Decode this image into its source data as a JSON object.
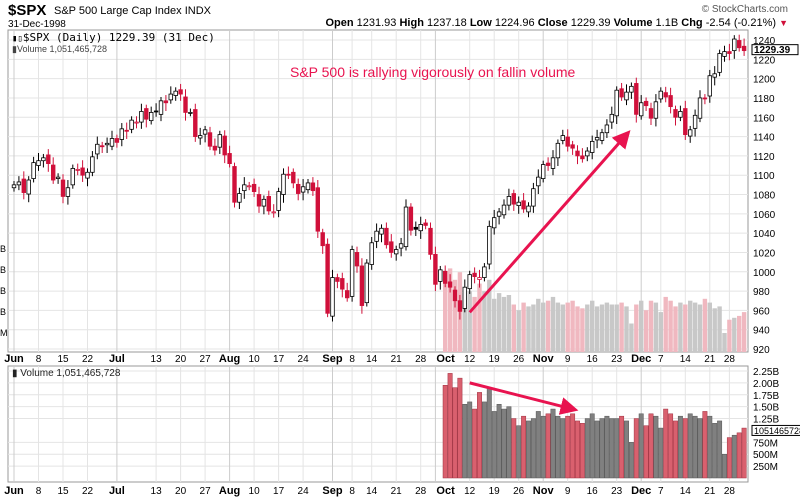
{
  "header": {
    "symbol": "$SPX",
    "name": "S&P 500 Large Cap Index",
    "exchange": "INDX",
    "date": "31-Dec-1998",
    "copyright": "© StockCharts.com",
    "open_label": "Open",
    "open": "1231.93",
    "high_label": "High",
    "high": "1237.18",
    "low_label": "Low",
    "low": "1224.96",
    "close_label": "Close",
    "close": "1229.39",
    "volume_label": "Volume",
    "volume": "1.1B",
    "chg_label": "Chg",
    "chg": "-2.54 (-0.21%)"
  },
  "legend": {
    "price": "$SPX (Daily) 1229.39 (31 Dec)",
    "volume": "Volume 1,051,465,728",
    "volume_panel": "Volume 1,051,465,728"
  },
  "colors": {
    "up": "#000000",
    "down": "#d0103a",
    "vol_up": "#808080",
    "vol_down": "#d9606e",
    "annotation": "#e8134f"
  },
  "chart_data": {
    "type": "candlestick",
    "title": "$SPX (Daily)",
    "annotation": "S&P 500 is rallying vigorously on fallin volume",
    "ylim": [
      920,
      1240
    ],
    "yticks": [
      920,
      940,
      960,
      980,
      1000,
      1020,
      1040,
      1060,
      1080,
      1100,
      1120,
      1140,
      1160,
      1180,
      1200,
      1220,
      1240
    ],
    "last_price_label": "1229.39",
    "overlay_volume_ticks": [
      "B",
      "B",
      "B",
      "B",
      "M"
    ],
    "xticks": [
      {
        "i": 0,
        "label": "Jun",
        "major": true
      },
      {
        "i": 5,
        "label": "8"
      },
      {
        "i": 10,
        "label": "15"
      },
      {
        "i": 15,
        "label": "22"
      },
      {
        "i": 21,
        "label": "Jul",
        "major": true
      },
      {
        "i": 29,
        "label": "13"
      },
      {
        "i": 34,
        "label": "20"
      },
      {
        "i": 39,
        "label": "27"
      },
      {
        "i": 44,
        "label": "Aug",
        "major": true
      },
      {
        "i": 49,
        "label": "10"
      },
      {
        "i": 54,
        "label": "17"
      },
      {
        "i": 59,
        "label": "24"
      },
      {
        "i": 65,
        "label": "Sep",
        "major": true
      },
      {
        "i": 69,
        "label": "8"
      },
      {
        "i": 73,
        "label": "14"
      },
      {
        "i": 78,
        "label": "21"
      },
      {
        "i": 83,
        "label": "28"
      },
      {
        "i": 86,
        "label": "Oct",
        "major": true
      },
      {
        "i": 93,
        "label": "12"
      },
      {
        "i": 98,
        "label": "19"
      },
      {
        "i": 103,
        "label": "26"
      },
      {
        "i": 108,
        "label": "Nov",
        "major": true
      },
      {
        "i": 113,
        "label": "9"
      },
      {
        "i": 118,
        "label": "16"
      },
      {
        "i": 123,
        "label": "23"
      },
      {
        "i": 128,
        "label": "Dec",
        "major": true
      },
      {
        "i": 132,
        "label": "7"
      },
      {
        "i": 137,
        "label": "14"
      },
      {
        "i": 142,
        "label": "21"
      },
      {
        "i": 146,
        "label": "28"
      }
    ],
    "closes": [
      1090,
      1093,
      1082,
      1095,
      1113,
      1115,
      1118,
      1112,
      1095,
      1098,
      1078,
      1087,
      1107,
      1106,
      1100,
      1103,
      1119,
      1132,
      1130,
      1133,
      1138,
      1134,
      1148,
      1146,
      1157,
      1155,
      1166,
      1158,
      1165,
      1166,
      1177,
      1175,
      1184,
      1187,
      1184,
      1165,
      1165,
      1140,
      1141,
      1147,
      1130,
      1126,
      1142,
      1121,
      1112,
      1072,
      1081,
      1090,
      1089,
      1083,
      1068,
      1075,
      1063,
      1062,
      1083,
      1101,
      1100,
      1092,
      1081,
      1088,
      1092,
      1084,
      1042,
      1027,
      957,
      994,
      990,
      982,
      973,
      1023,
      1006,
      965,
      1009,
      1030,
      1042,
      1045,
      1028,
      1020,
      1023,
      1029,
      1067,
      1043,
      1044,
      1049,
      1048,
      1018,
      987,
      1002,
      988,
      984,
      970,
      959,
      984,
      997,
      995,
      994,
      1005,
      1047,
      1056,
      1062,
      1069,
      1078,
      1070,
      1072,
      1065,
      1068,
      1086,
      1098,
      1111,
      1110,
      1118,
      1133,
      1141,
      1130,
      1128,
      1120,
      1117,
      1125,
      1135,
      1139,
      1144,
      1152,
      1163,
      1188,
      1181,
      1186,
      1192,
      1163,
      1175,
      1172,
      1159,
      1176,
      1187,
      1181,
      1171,
      1160,
      1166,
      1142,
      1147,
      1162,
      1180,
      1179,
      1203,
      1205,
      1226,
      1228,
      1226,
      1241,
      1232,
      1229
    ],
    "volume_start_index": 88,
    "volume_billions": [
      1.95,
      2.2,
      1.9,
      2.1,
      1.55,
      1.6,
      1.45,
      1.8,
      1.6,
      1.9,
      1.4,
      1.55,
      1.45,
      1.5,
      1.25,
      1.1,
      1.3,
      1.2,
      1.25,
      1.4,
      1.3,
      1.35,
      1.45,
      1.3,
      1.25,
      1.3,
      1.35,
      1.2,
      1.15,
      1.25,
      1.35,
      1.2,
      1.25,
      1.3,
      1.25,
      1.25,
      1.3,
      1.2,
      0.75,
      1.25,
      1.35,
      1.1,
      1.35,
      1.3,
      1.05,
      1.45,
      1.35,
      1.2,
      1.3,
      1.25,
      1.35,
      1.3,
      1.25,
      1.4,
      1.3,
      1.15,
      1.2,
      0.5,
      0.85,
      0.9,
      0.95,
      1.05
    ],
    "volume_ylim": [
      0,
      2.25
    ],
    "volume_ticks": [
      "2.25B",
      "2.00B",
      "1.75B",
      "1.50B",
      "1.25B",
      "750M",
      "500M",
      "250M"
    ],
    "volume_tick_values": [
      2.25,
      2.0,
      1.75,
      1.5,
      1.25,
      0.75,
      0.5,
      0.25
    ],
    "last_volume_label": "1051465728",
    "arrows": [
      {
        "panel": "price",
        "from": [
          93,
          958
        ],
        "to": [
          125,
          1142
        ]
      },
      {
        "panel": "volume",
        "from": [
          93,
          2.0
        ],
        "to": [
          114,
          1.45
        ]
      }
    ]
  }
}
